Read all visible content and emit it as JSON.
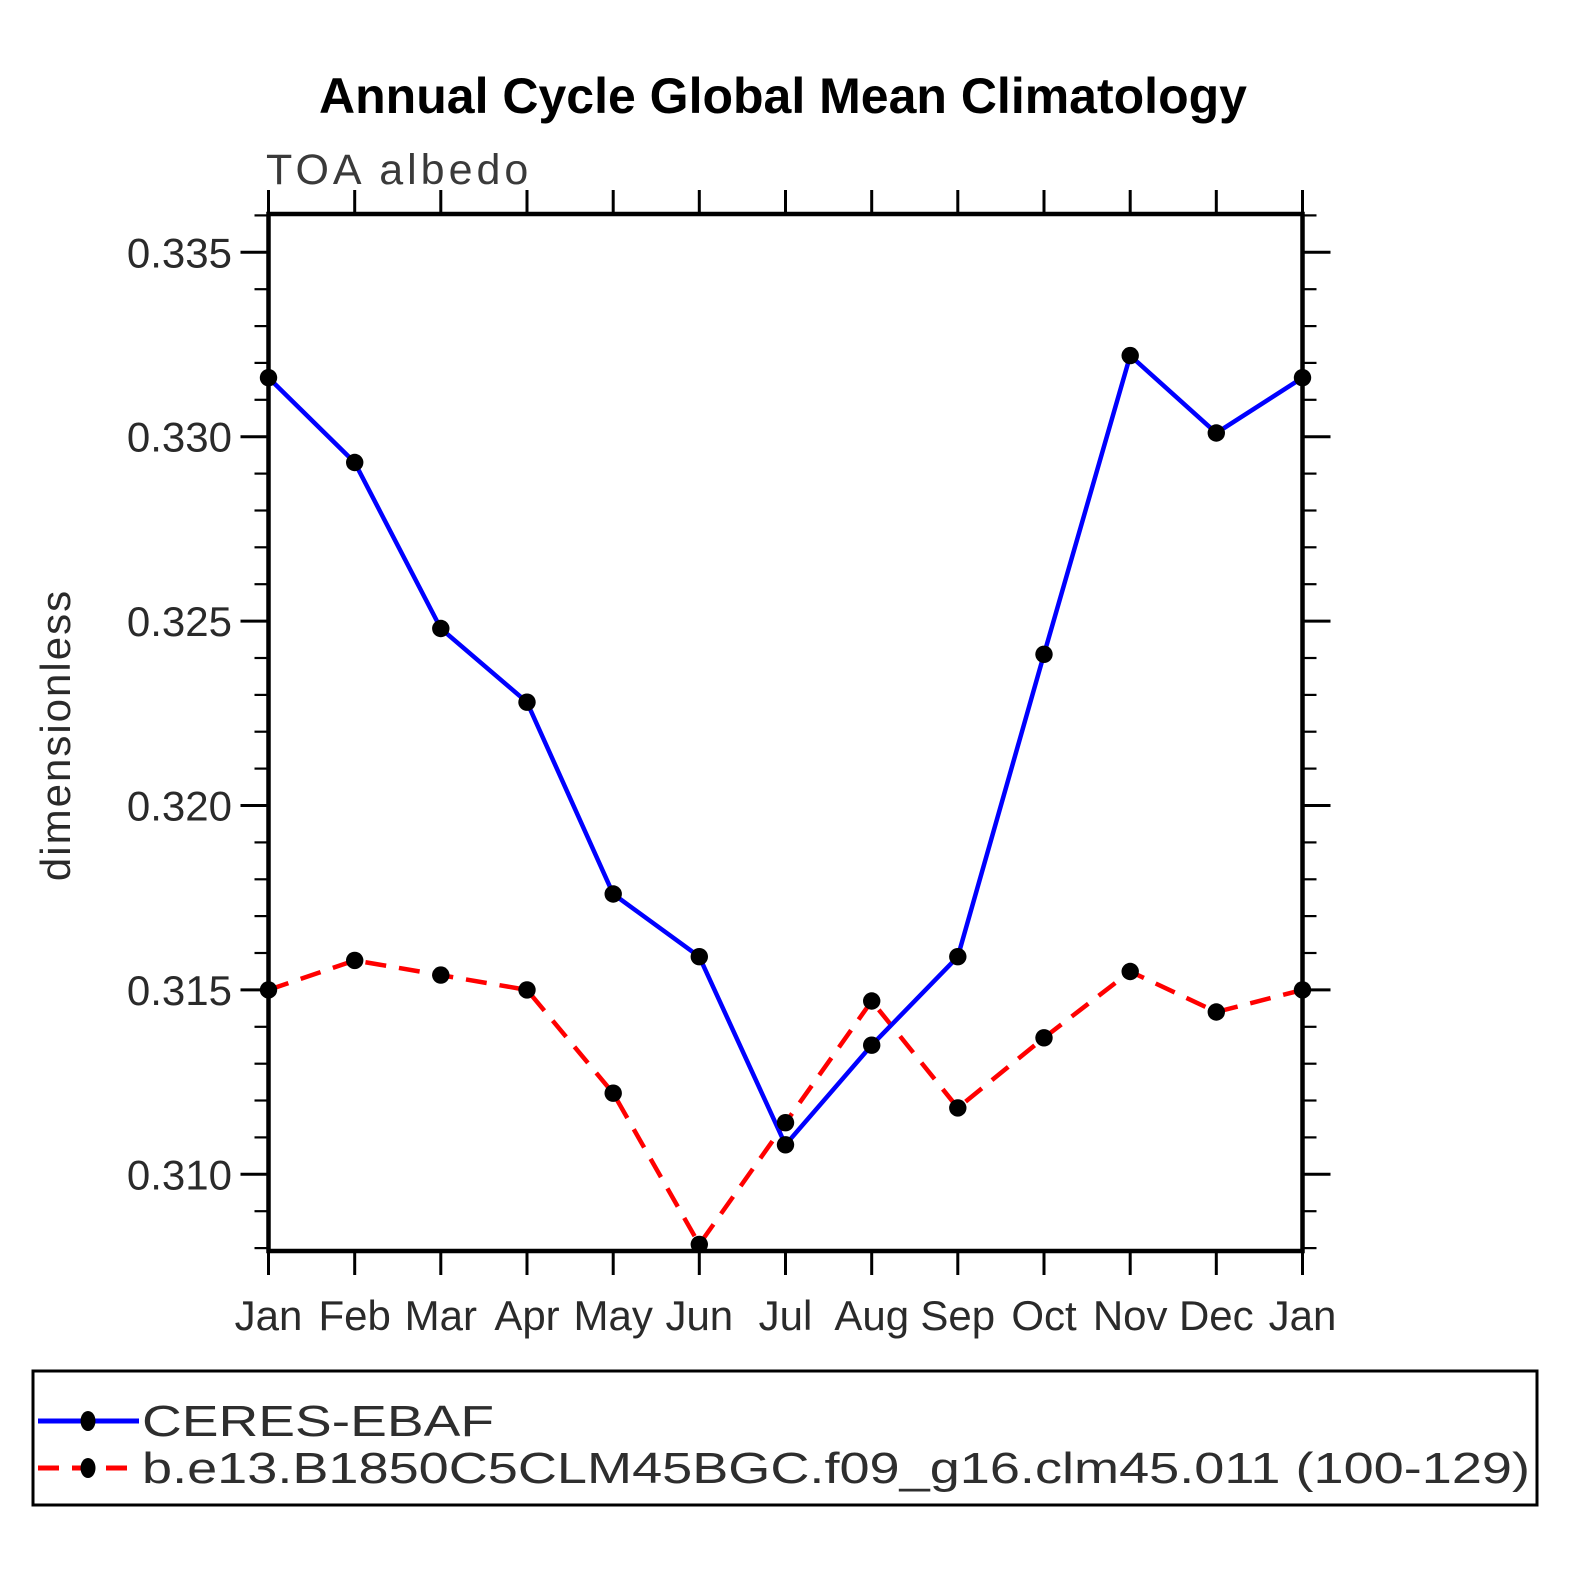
{
  "header": {
    "title": "Annual Cycle Global Mean Climatology",
    "subtitle": "TOA albedo"
  },
  "chart_data": {
    "type": "line",
    "title": "Annual Cycle Global Mean Climatology",
    "subtitle": "TOA albedo",
    "xlabel": "",
    "ylabel": "dimensionless",
    "categories": [
      "Jan",
      "Feb",
      "Mar",
      "Apr",
      "May",
      "Jun",
      "Jul",
      "Aug",
      "Sep",
      "Oct",
      "Nov",
      "Dec",
      "Jan"
    ],
    "series": [
      {
        "name": "CERES-EBAF",
        "color": "#0000ff",
        "line_style": "solid",
        "marker": "filled-black-circle",
        "values": [
          0.3316,
          0.3293,
          0.3248,
          0.3228,
          0.3176,
          0.3159,
          0.3108,
          0.3135,
          0.3159,
          0.3241,
          0.3322,
          0.3301,
          0.3316
        ]
      },
      {
        "name": "b.e13.B1850C5CLM45BGC.f09_g16.clm45.011 (100-129)",
        "color": "#ff0000",
        "line_style": "dashed",
        "marker": "filled-black-circle",
        "values": [
          0.315,
          0.3158,
          0.3154,
          0.315,
          0.3122,
          0.3081,
          0.3114,
          0.3147,
          0.3118,
          0.3137,
          0.3155,
          0.3144,
          0.315
        ]
      }
    ],
    "ylim": [
      0.3079,
      0.336
    ],
    "yticks_major": [
      0.31,
      0.315,
      0.32,
      0.325,
      0.33,
      0.335
    ],
    "ytick_labels": [
      "0.310",
      "0.315",
      "0.320",
      "0.325",
      "0.330",
      "0.335"
    ],
    "yminor_step": 0.001,
    "grid": false,
    "legend_position": "bottom-box",
    "axis_color": "#000000",
    "marker_color": "#000000"
  }
}
